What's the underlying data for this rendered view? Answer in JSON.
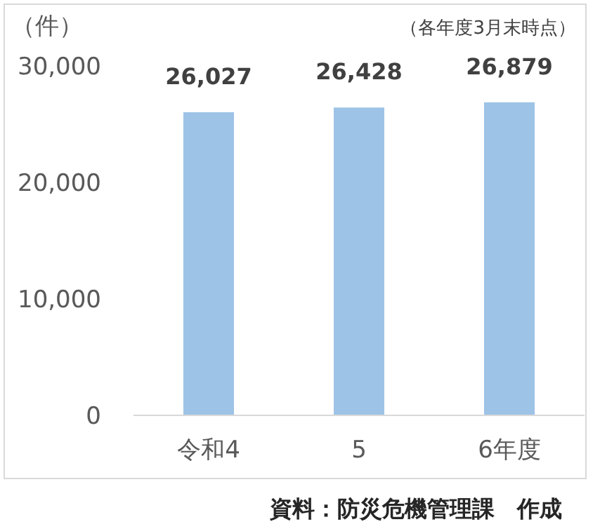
{
  "chart_data": {
    "type": "bar",
    "ylabel": "（件）",
    "categories": [
      "令和4",
      "5",
      "6年度"
    ],
    "values": [
      26027,
      26428,
      26879
    ],
    "color": "#9dc3e6",
    "ylim": [
      0,
      30000
    ],
    "yticks": [
      {
        "value": 0,
        "label": "0"
      },
      {
        "value": 10000,
        "label": "10,000"
      },
      {
        "value": 20000,
        "label": "20,000"
      },
      {
        "value": 30000,
        "label": "30,000"
      }
    ],
    "value_labels": [
      "26,027",
      "26,428",
      "26,879"
    ],
    "annotations": [
      "（各年度3月末時点）",
      "資料：防災危機管理課　作成"
    ]
  }
}
